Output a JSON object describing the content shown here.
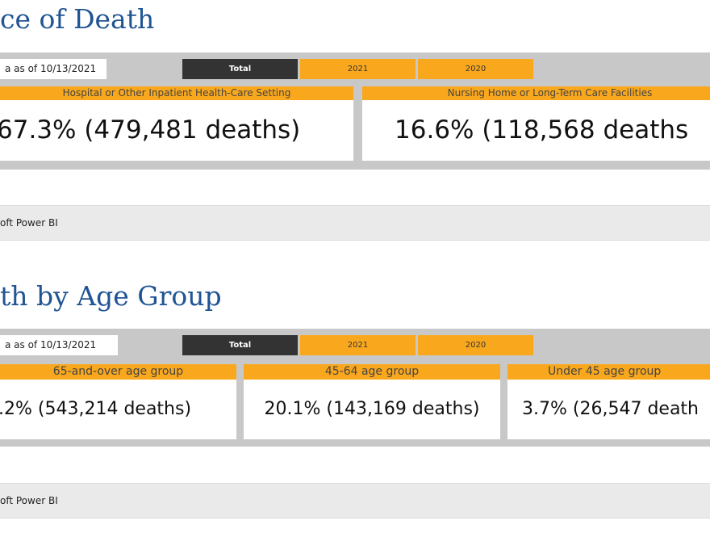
{
  "sections": [
    {
      "heading": "ce of Death",
      "as_of": "a as of 10/13/2021",
      "tabs": [
        {
          "label": "Total",
          "active": true
        },
        {
          "label": "2021",
          "active": false
        },
        {
          "label": "2020",
          "active": false
        }
      ],
      "cards": [
        {
          "label": "Hospital or Other Inpatient Health-Care Setting",
          "value": "67.3% (479,481 deaths)"
        },
        {
          "label": "Nursing Home or Long-Term Care Facilities",
          "value": "16.6% (118,568 deaths"
        }
      ],
      "footer": "oft Power BI"
    },
    {
      "heading": "th by Age Group",
      "as_of": "a as of 10/13/2021",
      "tabs": [
        {
          "label": "Total",
          "active": true
        },
        {
          "label": "2021",
          "active": false
        },
        {
          "label": "2020",
          "active": false
        }
      ],
      "cards": [
        {
          "label": "65-and-over age group",
          "value": ".2% (543,214 deaths)"
        },
        {
          "label": "45-64 age group",
          "value": "20.1% (143,169 deaths)"
        },
        {
          "label": "Under 45 age group",
          "value": "3.7% (26,547 death"
        }
      ],
      "footer": "oft Power BI"
    }
  ],
  "colors": {
    "heading": "#205493",
    "report_bg": "#c8c8c8",
    "tab_active": "#333333",
    "tab_inactive": "#f9a81d",
    "card_header": "#f9a81d",
    "footer_bg": "#eaeaea"
  }
}
